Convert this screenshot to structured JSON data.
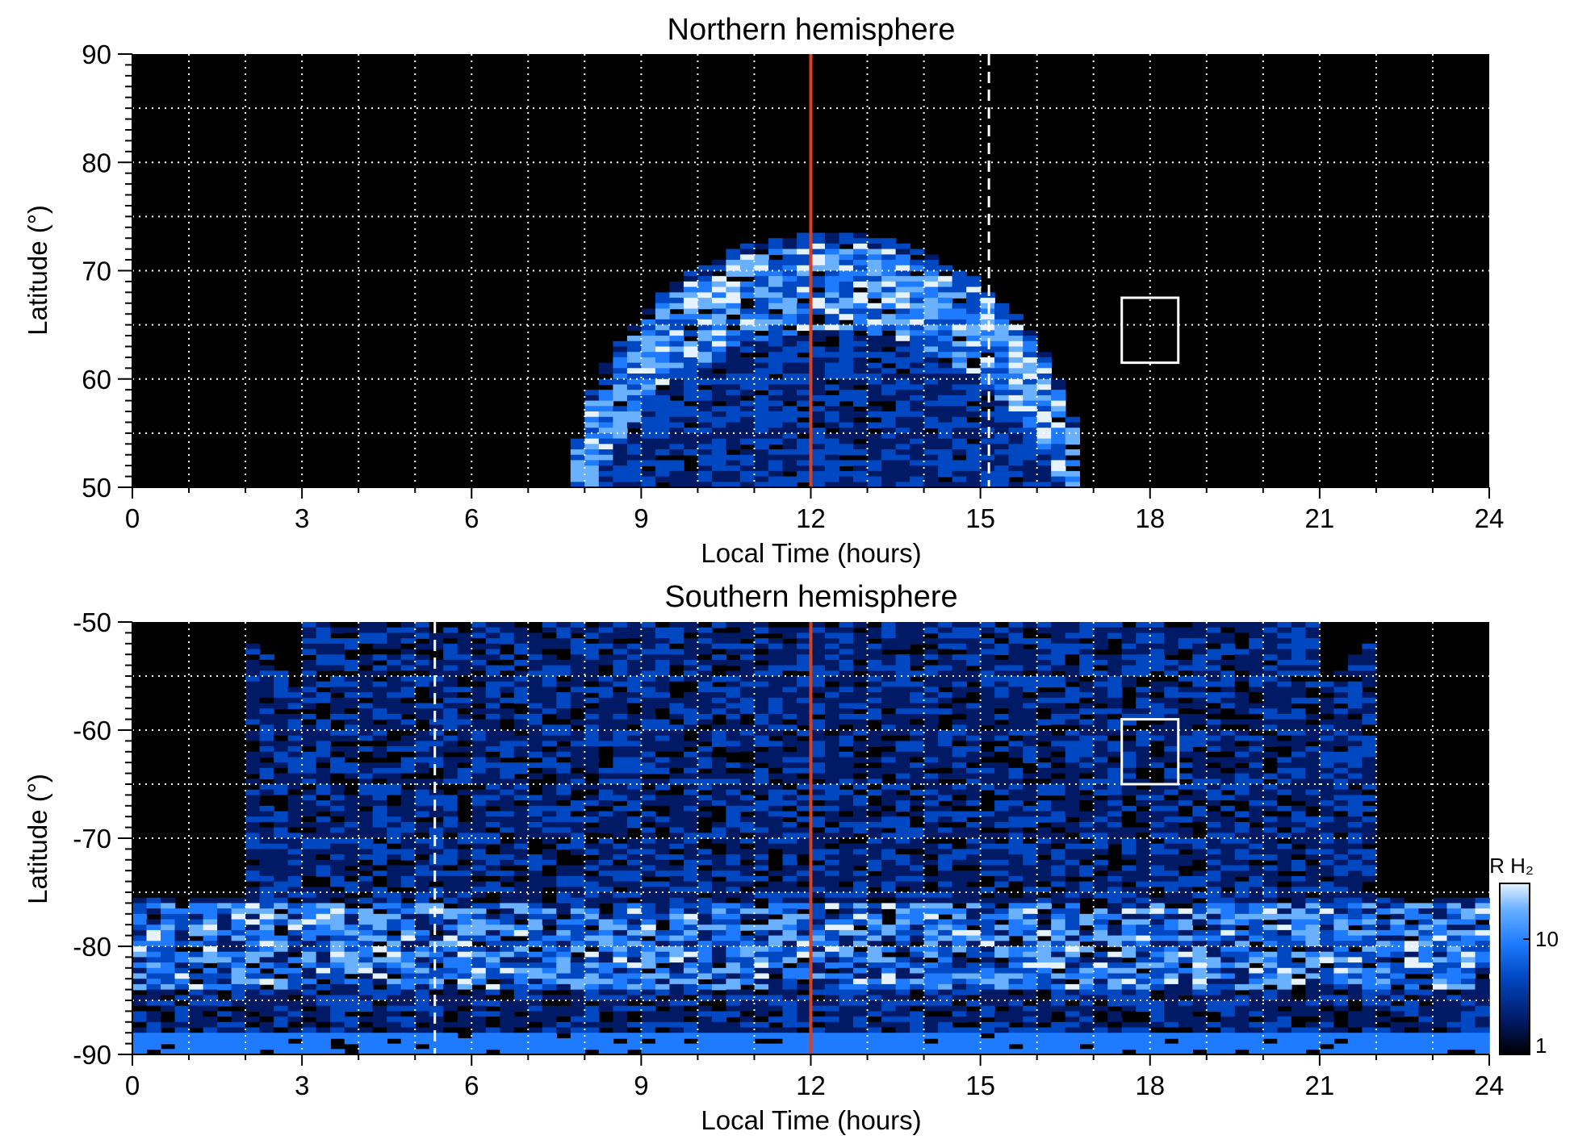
{
  "chart_data": [
    {
      "type": "heatmap",
      "title": "Northern hemisphere",
      "xlabel": "Local Time (hours)",
      "ylabel": "Latitude (°)",
      "xlim": [
        0,
        24
      ],
      "ylim": [
        50,
        90
      ],
      "x_ticks": [
        "0",
        "3",
        "6",
        "9",
        "12",
        "15",
        "18",
        "21",
        "24"
      ],
      "y_ticks": [
        "90",
        "80",
        "70",
        "60",
        "50"
      ],
      "grid": true,
      "emission_region": {
        "lt_range": [
          7.8,
          16.8
        ],
        "lat_max": 73.5,
        "bright_ring_lat": 66
      },
      "noon_line_lt": 12,
      "noon_line_color": "#d9411e",
      "dashed_line_lt": 15.15,
      "box": {
        "lt": [
          17.5,
          18.5
        ],
        "lat": [
          61.5,
          67.5
        ]
      }
    },
    {
      "type": "heatmap",
      "title": "Southern hemisphere",
      "xlabel": "Local Time (hours)",
      "ylabel": "Latitude (°)",
      "xlim": [
        0,
        24
      ],
      "ylim": [
        -90,
        -50
      ],
      "x_ticks": [
        "0",
        "3",
        "6",
        "9",
        "12",
        "15",
        "18",
        "21",
        "24"
      ],
      "y_ticks": [
        "-50",
        "-60",
        "-70",
        "-80",
        "-90"
      ],
      "grid": true,
      "emission_region": {
        "bright_ring_lat": -80
      },
      "noon_line_lt": 12,
      "noon_line_color": "#d9411e",
      "dashed_line_lt": 5.35,
      "box": {
        "lt": [
          17.5,
          18.5
        ],
        "lat": [
          -65,
          -59
        ]
      }
    }
  ],
  "colorbar": {
    "label": "kR H₂",
    "scale": "log",
    "range": [
      1,
      30
    ],
    "ticks": [
      "10",
      "1"
    ],
    "colors": [
      "#000000",
      "#001a66",
      "#0047c2",
      "#1e7bff",
      "#69b0ff",
      "#e6f3ff"
    ]
  }
}
